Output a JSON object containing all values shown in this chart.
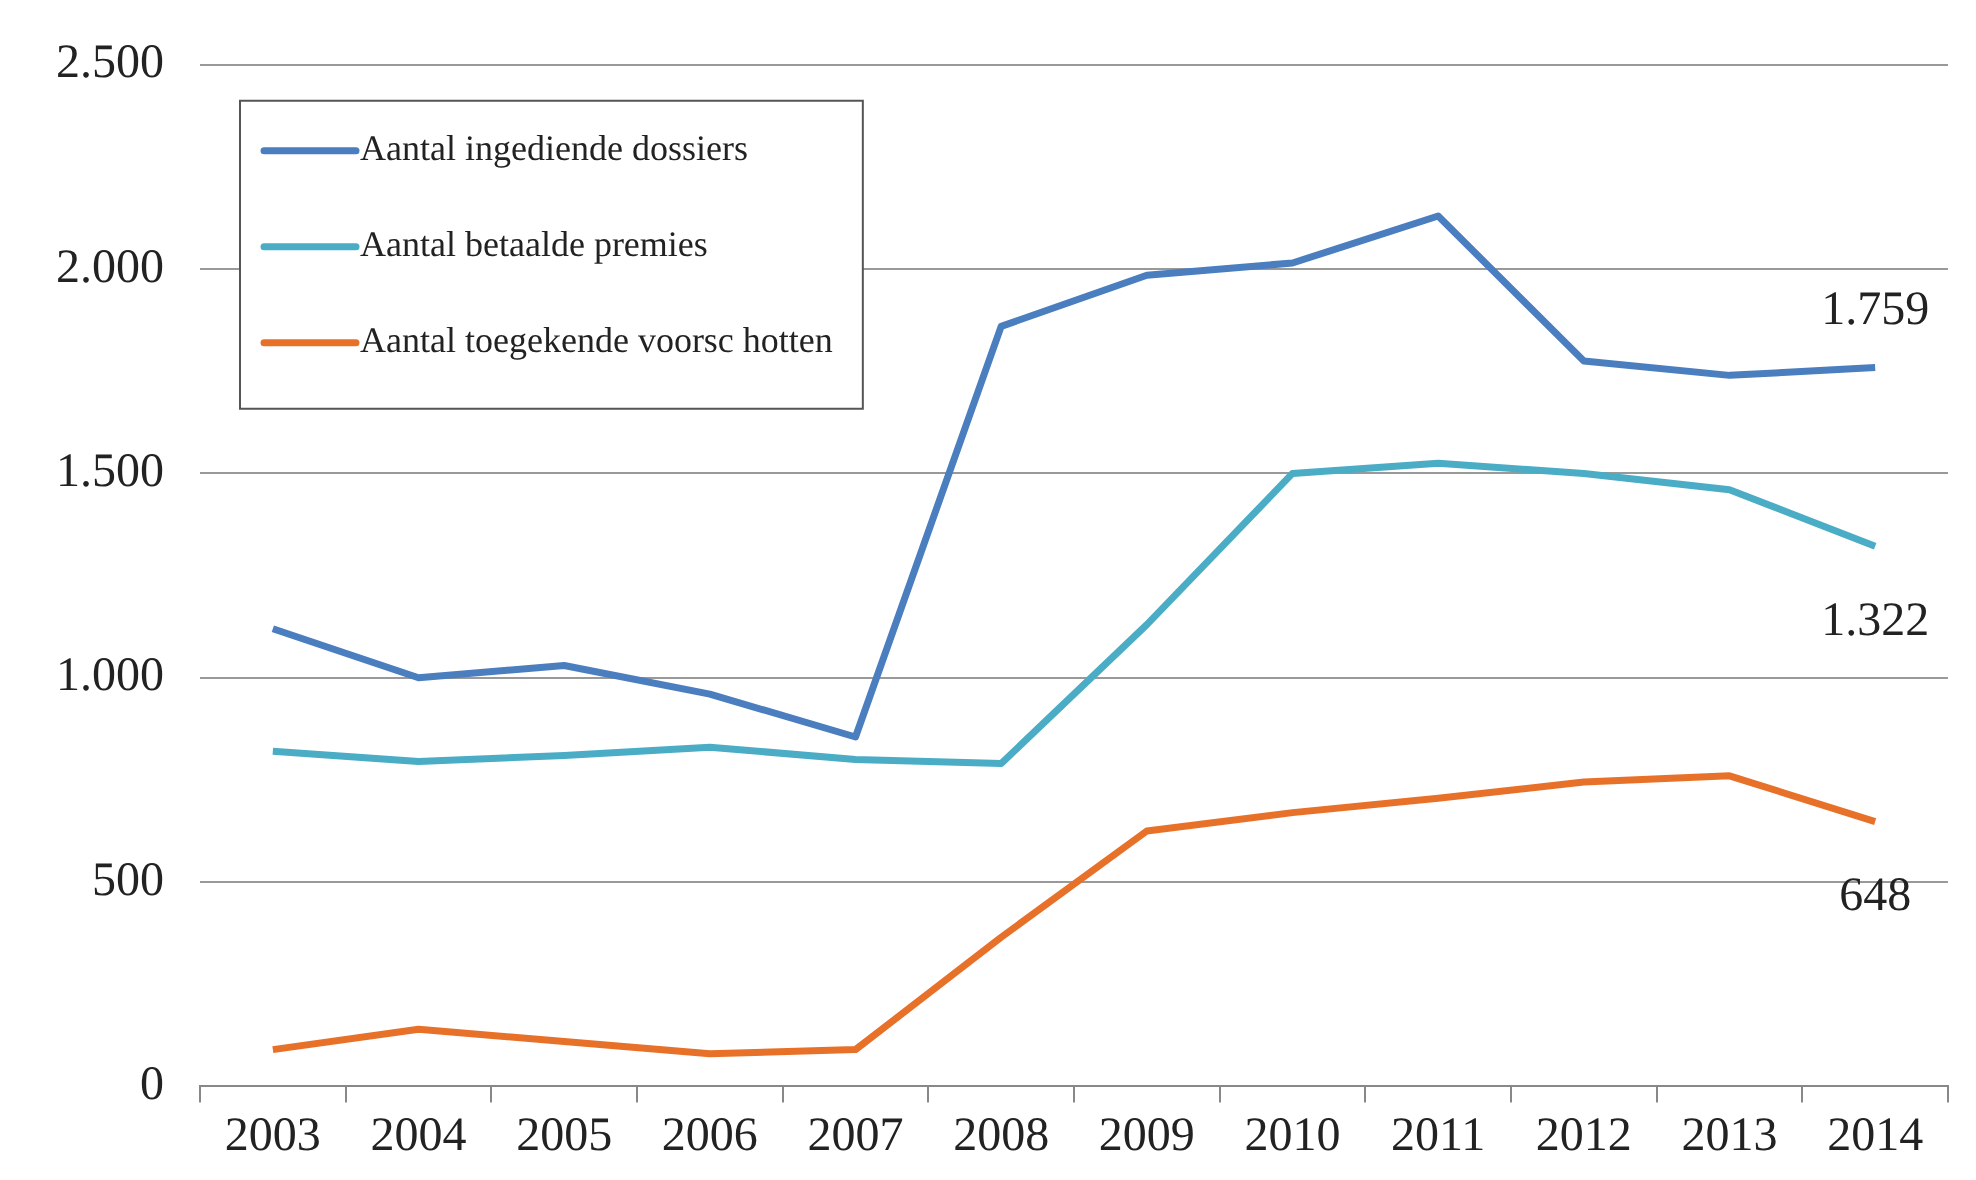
{
  "chart_data": {
    "type": "line",
    "categories": [
      "2003",
      "2004",
      "2005",
      "2006",
      "2007",
      "2008",
      "2009",
      "2010",
      "2011",
      "2012",
      "2013",
      "2014"
    ],
    "series": [
      {
        "name": "Aantal ingediende dossiers",
        "color": "#4a7ebf",
        "values": [
          1120,
          1000,
          1030,
          960,
          855,
          1860,
          1985,
          2015,
          2130,
          1775,
          1740,
          1759
        ],
        "value_labels": [
          null,
          null,
          null,
          null,
          null,
          null,
          null,
          null,
          null,
          null,
          null,
          "1.759"
        ]
      },
      {
        "name": "Aantal betaalde premies",
        "color": "#4bacc6",
        "values": [
          820,
          795,
          810,
          830,
          800,
          790,
          1130,
          1500,
          1525,
          1500,
          1460,
          1322
        ],
        "value_labels": [
          null,
          null,
          null,
          null,
          null,
          null,
          null,
          null,
          null,
          null,
          null,
          "1.322"
        ]
      },
      {
        "name": "Aantal toegekende voorsc hotten",
        "color": "#e8712a",
        "values": [
          90,
          140,
          110,
          80,
          90,
          365,
          625,
          670,
          705,
          745,
          760,
          648
        ],
        "value_labels": [
          null,
          null,
          null,
          null,
          null,
          null,
          null,
          null,
          null,
          null,
          null,
          "648"
        ]
      }
    ],
    "ylim": [
      0,
      2500
    ],
    "yticks": [
      {
        "value": 0,
        "label": "0"
      },
      {
        "value": 500,
        "label": "500"
      },
      {
        "value": 1000,
        "label": "1.000"
      },
      {
        "value": 1500,
        "label": "1.500"
      },
      {
        "value": 2000,
        "label": "2.000"
      },
      {
        "value": 2500,
        "label": "2.500"
      }
    ],
    "grid": "y",
    "legend": "top left",
    "marker": "none",
    "line_style": "solid"
  }
}
